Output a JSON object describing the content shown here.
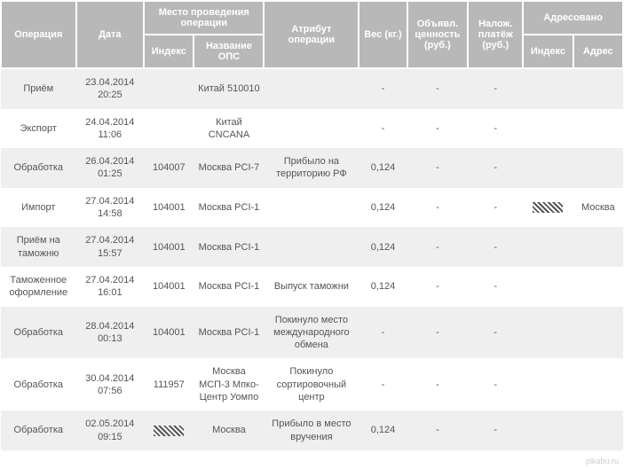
{
  "watermark": "pikabu.ru",
  "header": {
    "operation": "Операция",
    "date": "Дата",
    "place_group": "Место проведения операции",
    "place_index": "Индекс",
    "place_name": "Название ОПС",
    "attribute": "Атрибут операции",
    "weight": "Вес (кг.)",
    "declared_value": "Объявл. ценность (руб.)",
    "cod": "Налож. платёж (руб.)",
    "addressed_group": "Адресовано",
    "addr_index": "Индекс",
    "addr_addr": "Адрес"
  },
  "rows": [
    {
      "op": "Приём",
      "date": "23.04.2014 20:25",
      "idx": "",
      "ops": "Китай 510010",
      "attr": "",
      "weight": "-",
      "val": "-",
      "pay": "-",
      "aidx": "",
      "aaddr": ""
    },
    {
      "op": "Экспорт",
      "date": "24.04.2014 11:06",
      "idx": "",
      "ops": "Китай CNCANA",
      "attr": "",
      "weight": "-",
      "val": "-",
      "pay": "-",
      "aidx": "",
      "aaddr": ""
    },
    {
      "op": "Обработка",
      "date": "26.04.2014 01:25",
      "idx": "104007",
      "ops": "Москва PCI-7",
      "attr": "Прибыло на территорию РФ",
      "weight": "0,124",
      "val": "-",
      "pay": "-",
      "aidx": "",
      "aaddr": ""
    },
    {
      "op": "Импорт",
      "date": "27.04.2014 14:58",
      "idx": "104001",
      "ops": "Москва PCI-1",
      "attr": "",
      "weight": "0,124",
      "val": "-",
      "pay": "-",
      "aidx": "HATCH",
      "aaddr": "Москва"
    },
    {
      "op": "Приём на таможню",
      "date": "27.04.2014 15:57",
      "idx": "104001",
      "ops": "Москва PCI-1",
      "attr": "",
      "weight": "0,124",
      "val": "-",
      "pay": "-",
      "aidx": "",
      "aaddr": ""
    },
    {
      "op": "Таможенное оформление",
      "date": "27.04.2014 16:01",
      "idx": "104001",
      "ops": "Москва PCI-1",
      "attr": "Выпуск таможни",
      "weight": "0,124",
      "val": "-",
      "pay": "-",
      "aidx": "",
      "aaddr": ""
    },
    {
      "op": "Обработка",
      "date": "28.04.2014 00:13",
      "idx": "104001",
      "ops": "Москва PCI-1",
      "attr": "Покинуло место международного обмена",
      "weight": "-",
      "val": "-",
      "pay": "-",
      "aidx": "",
      "aaddr": ""
    },
    {
      "op": "Обработка",
      "date": "30.04.2014 07:56",
      "idx": "111957",
      "ops": "Москва МСП-3 Мпко-Центр Уомпо",
      "attr": "Покинуло сортировочный центр",
      "weight": "-",
      "val": "-",
      "pay": "-",
      "aidx": "",
      "aaddr": ""
    },
    {
      "op": "Обработка",
      "date": "02.05.2014 09:15",
      "idx": "HATCH",
      "ops": "Москва",
      "attr": "Прибыло в место вручения",
      "weight": "0,124",
      "val": "-",
      "pay": "-",
      "aidx": "",
      "aaddr": ""
    }
  ],
  "style": {
    "header_bg": "#b8b8b8",
    "header_fg": "#ffffff",
    "row_odd_bg": "#efefef",
    "row_even_bg": "#ffffff",
    "cell_fg": "#555555",
    "font_family": "Arial",
    "font_size_header": 11,
    "font_size_body": 11,
    "border_color": "#ffffff",
    "watermark_color": "#cccccc"
  }
}
